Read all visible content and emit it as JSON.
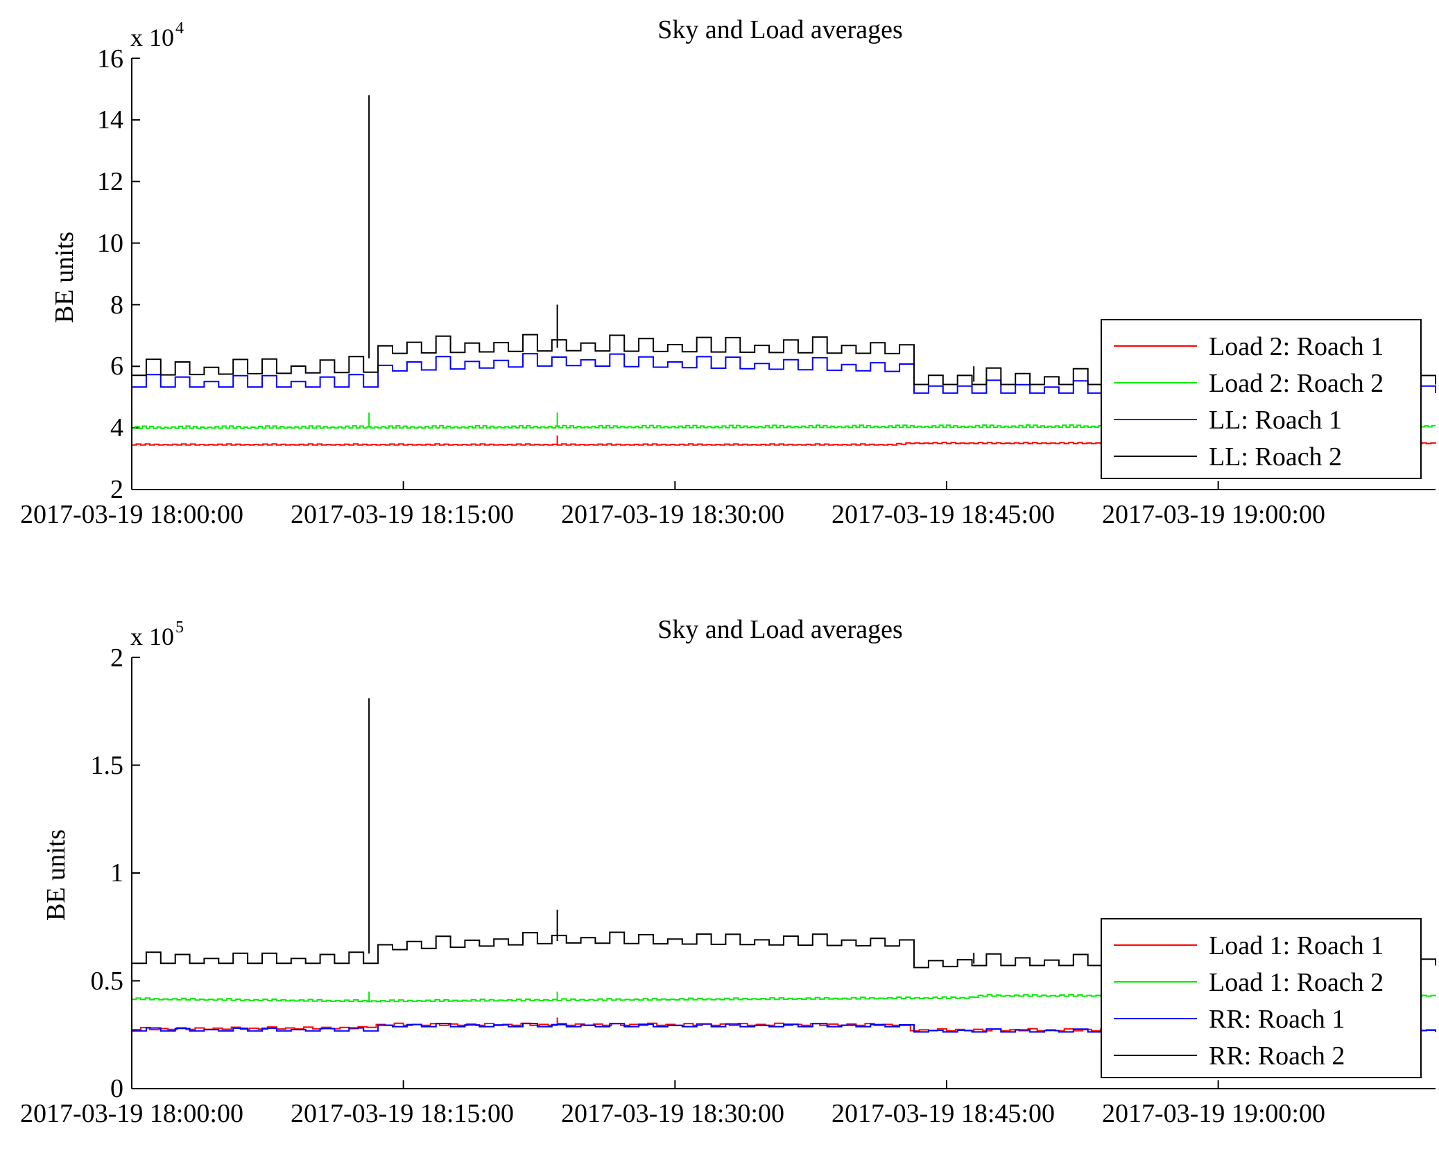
{
  "chart_data": [
    {
      "type": "line",
      "title": "Sky and Load averages",
      "ylabel": "BE units",
      "xlabel": "",
      "y_multiplier": "x 10",
      "y_exponent": "4",
      "y_scale": 10000,
      "ylim": [
        2,
        16
      ],
      "yticks": [
        2,
        4,
        6,
        8,
        10,
        12,
        14,
        16
      ],
      "xlim_minutes": [
        0,
        72
      ],
      "xtick_minutes": [
        0,
        15,
        30,
        45,
        60
      ],
      "xtick_labels": [
        "2017-03-19 18:00:00",
        "2017-03-19 18:15:00",
        "2017-03-19 18:30:00",
        "2017-03-19 18:45:00",
        "2017-03-19 19:00:00"
      ],
      "legend_position": "bottom-right",
      "series": [
        {
          "name": "Load 2: Roach 1",
          "color": "#ff0000",
          "base": [
            [
              0,
              3.45
            ],
            [
              42,
              3.45
            ],
            [
              43,
              3.5
            ],
            [
              72,
              3.5
            ]
          ],
          "ripple": 0.03,
          "period": 0.5,
          "spikes": [
            [
              23.5,
              3.75
            ]
          ]
        },
        {
          "name": "Load 2: Roach 2",
          "color": "#00ee00",
          "base": [
            [
              0,
              4.0
            ],
            [
              72,
              4.05
            ]
          ],
          "ripple": 0.06,
          "period": 0.4,
          "spikes": [
            [
              13.1,
              4.5
            ],
            [
              23.5,
              4.5
            ]
          ]
        },
        {
          "name": "LL: Roach 1",
          "color": "#0000ff",
          "base": [
            [
              0,
              5.4
            ],
            [
              12.8,
              5.4
            ],
            [
              13.3,
              5.9
            ],
            [
              23.5,
              6.1
            ],
            [
              42.2,
              5.9
            ],
            [
              43,
              5.2
            ],
            [
              72,
              5.2
            ]
          ],
          "ripple": 0.35,
          "period": 1.6,
          "spikes": []
        },
        {
          "name": "LL: Roach 2",
          "color": "#000000",
          "base": [
            [
              0,
              5.8
            ],
            [
              12.8,
              5.9
            ],
            [
              13.3,
              6.5
            ],
            [
              23.5,
              6.6
            ],
            [
              42.2,
              6.5
            ],
            [
              43,
              5.5
            ],
            [
              72,
              5.5
            ]
          ],
          "ripple": 0.45,
          "period": 1.6,
          "spikes": [
            [
              13.1,
              14.8
            ],
            [
              23.5,
              8.0
            ],
            [
              46.5,
              6.0
            ]
          ]
        }
      ]
    },
    {
      "type": "line",
      "title": "Sky and Load averages",
      "ylabel": "BE units",
      "xlabel": "",
      "y_multiplier": "x 10",
      "y_exponent": "5",
      "y_scale": 100000,
      "ylim": [
        0,
        2
      ],
      "yticks": [
        0,
        0.5,
        1,
        1.5,
        2
      ],
      "ytick_labels": [
        "0",
        "0.5",
        "1",
        "1.5",
        "2"
      ],
      "xlim_minutes": [
        0,
        72
      ],
      "xtick_minutes": [
        0,
        15,
        30,
        45,
        60
      ],
      "xtick_labels": [
        "2017-03-19 18:00:00",
        "2017-03-19 18:15:00",
        "2017-03-19 18:30:00",
        "2017-03-19 18:45:00",
        "2017-03-19 19:00:00"
      ],
      "legend_position": "bottom-right",
      "series": [
        {
          "name": "Load 1: Roach 1",
          "color": "#ff0000",
          "base": [
            [
              0,
              0.275
            ],
            [
              12.8,
              0.28
            ],
            [
              13.3,
              0.295
            ],
            [
              42.2,
              0.295
            ],
            [
              43,
              0.27
            ],
            [
              72,
              0.27
            ]
          ],
          "ripple": 0.008,
          "period": 1.0,
          "spikes": [
            [
              23.5,
              0.33
            ]
          ]
        },
        {
          "name": "Load 1: Roach 2",
          "color": "#00ee00",
          "base": [
            [
              0,
              0.415
            ],
            [
              12.8,
              0.405
            ],
            [
              13.3,
              0.405
            ],
            [
              23.5,
              0.41
            ],
            [
              46,
              0.42
            ],
            [
              47,
              0.43
            ],
            [
              72,
              0.43
            ]
          ],
          "ripple": 0.006,
          "period": 0.5,
          "spikes": [
            [
              13.1,
              0.45
            ],
            [
              23.5,
              0.45
            ]
          ]
        },
        {
          "name": "RR: Roach 1",
          "color": "#0000ff",
          "base": [
            [
              0,
              0.27
            ],
            [
              12.8,
              0.27
            ],
            [
              13.3,
              0.29
            ],
            [
              42.2,
              0.29
            ],
            [
              43,
              0.265
            ],
            [
              72,
              0.265
            ]
          ],
          "ripple": 0.012,
          "period": 1.6,
          "spikes": []
        },
        {
          "name": "RR: Roach 2",
          "color": "#000000",
          "base": [
            [
              0,
              0.59
            ],
            [
              12.8,
              0.59
            ],
            [
              13.3,
              0.65
            ],
            [
              23.5,
              0.685
            ],
            [
              42.2,
              0.67
            ],
            [
              43,
              0.57
            ],
            [
              46.5,
              0.58
            ],
            [
              72,
              0.58
            ]
          ],
          "ripple": 0.045,
          "period": 1.6,
          "spikes": [
            [
              13.1,
              1.81
            ],
            [
              23.5,
              0.83
            ],
            [
              46.5,
              0.63
            ]
          ]
        }
      ]
    }
  ]
}
